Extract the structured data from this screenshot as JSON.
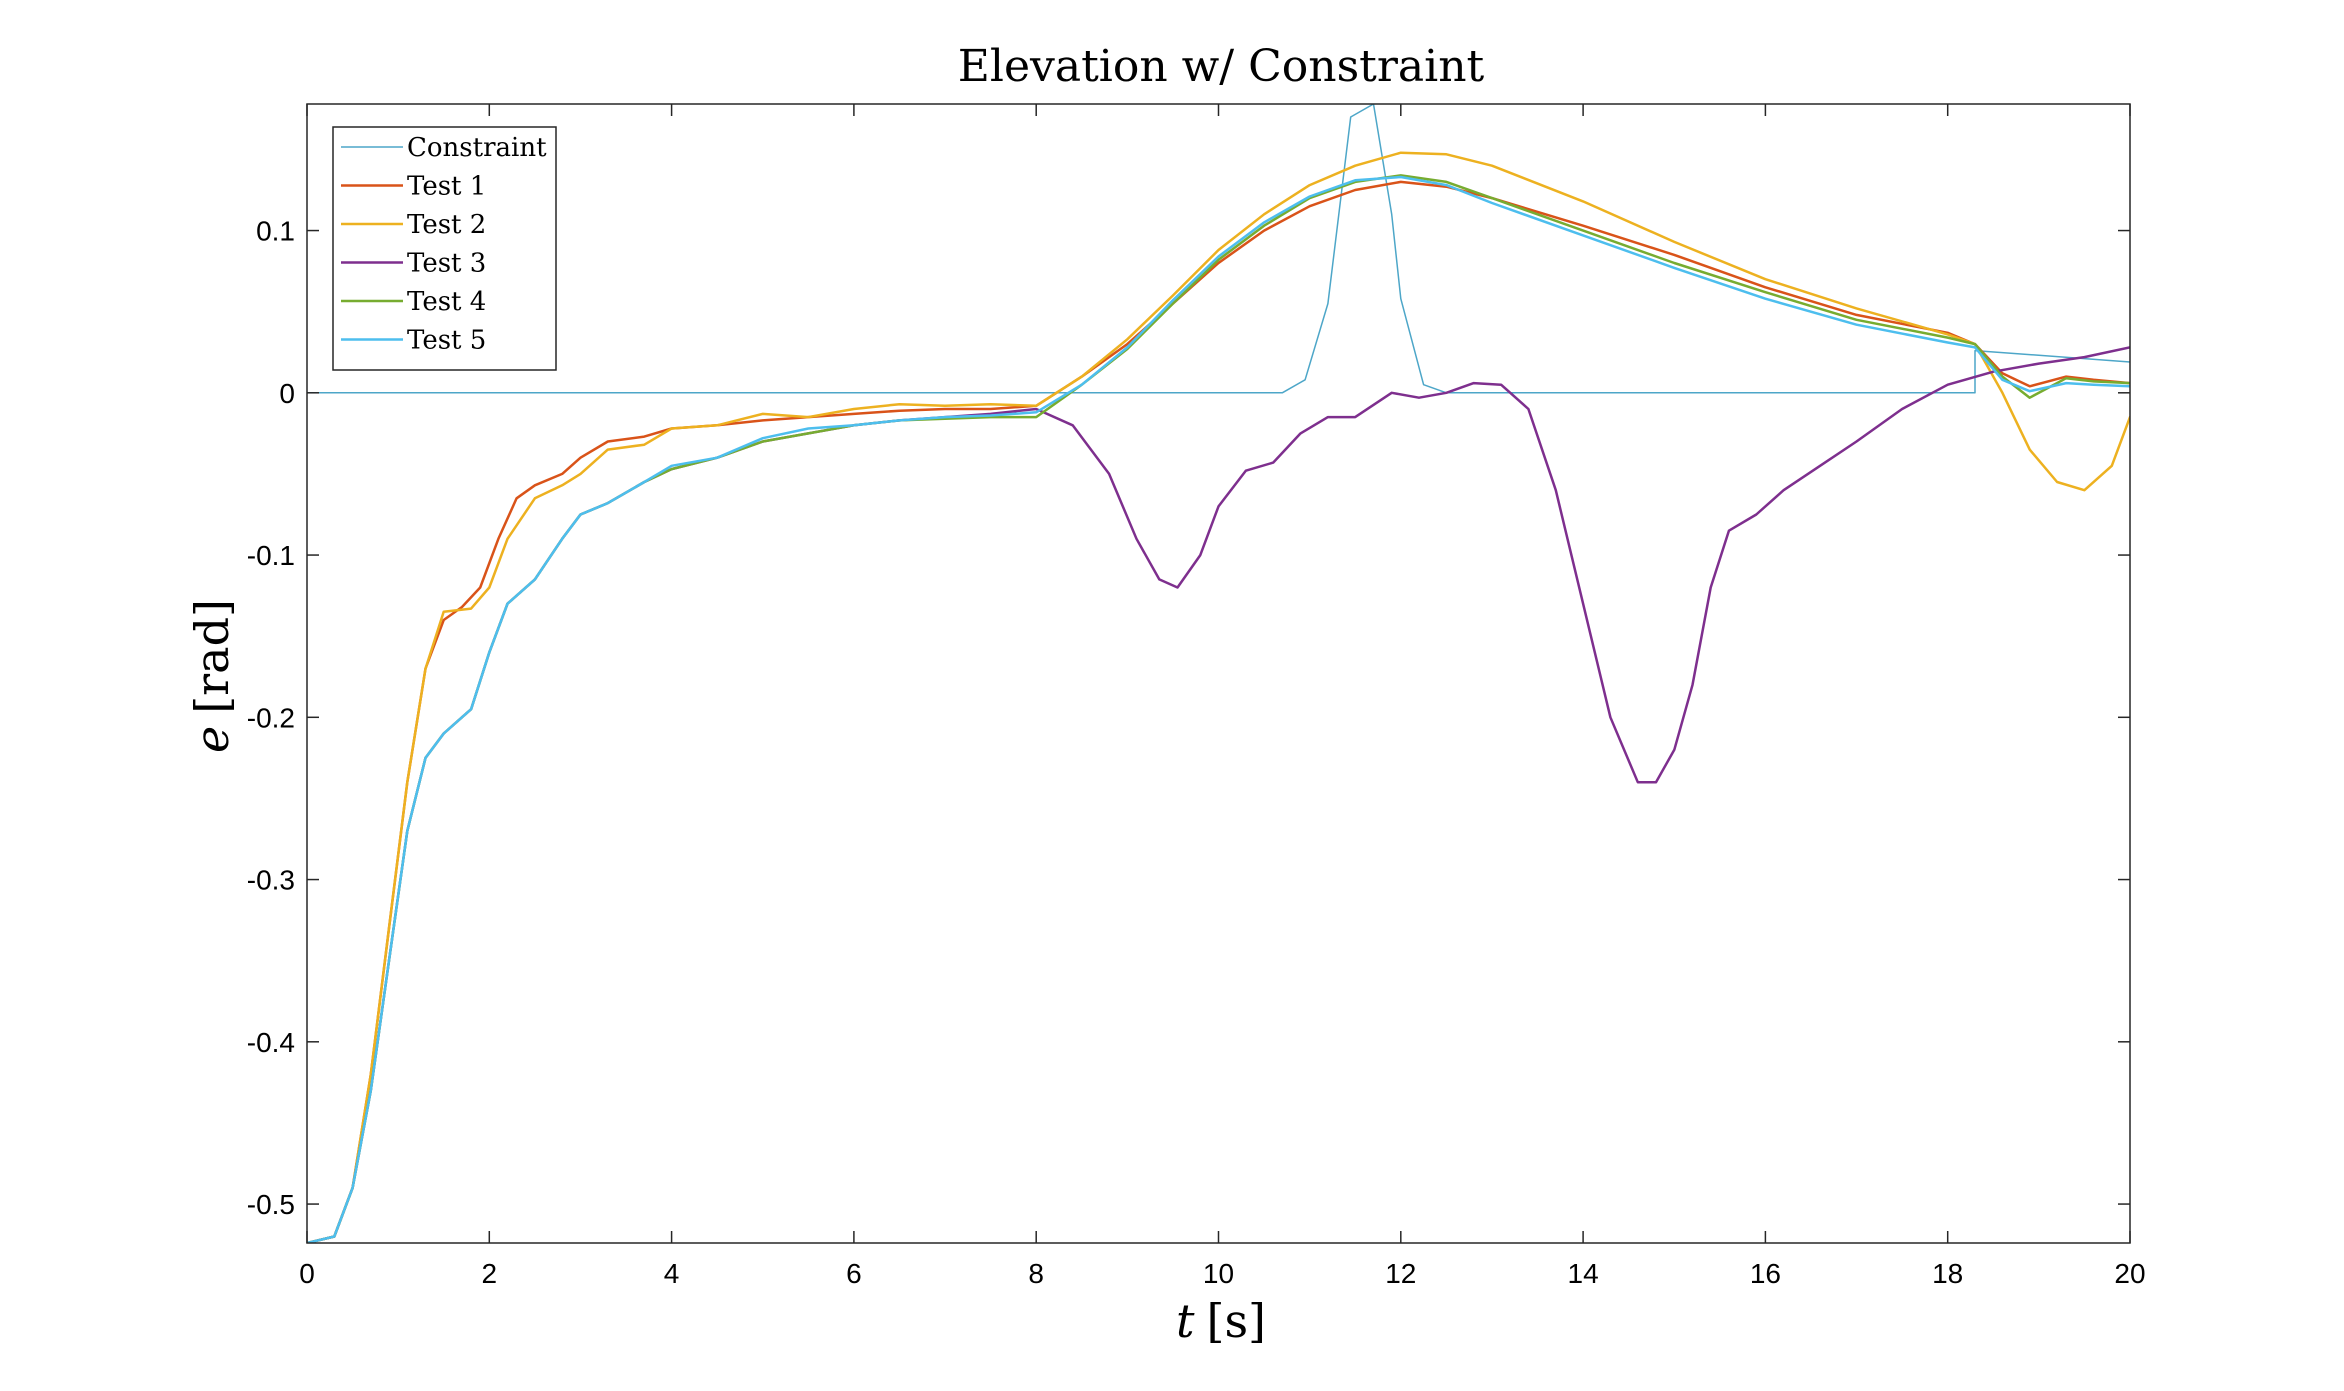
{
  "chart_data": {
    "type": "line",
    "title": "Elevation w/ Constraint",
    "xlabel_var": "t",
    "xlabel_unit": "[s]",
    "ylabel_var": "e",
    "ylabel_unit": "[rad]",
    "xlim": [
      0,
      20
    ],
    "ylim": [
      -0.524,
      0.178
    ],
    "xticks": [
      0,
      2,
      4,
      6,
      8,
      10,
      12,
      14,
      16,
      18,
      20
    ],
    "xtick_labels": [
      "0",
      "2",
      "4",
      "6",
      "8",
      "10",
      "12",
      "14",
      "16",
      "18",
      "20"
    ],
    "yticks": [
      -0.5,
      -0.4,
      -0.3,
      -0.2,
      -0.1,
      0,
      0.1
    ],
    "ytick_labels": [
      "-0.5",
      "-0.4",
      "-0.3",
      "-0.2",
      "-0.1",
      "0",
      "0.1"
    ],
    "grid": false,
    "legend_position": "top-left",
    "series": [
      {
        "name": "Constraint",
        "color": "#4DA6C8",
        "width": 1.5,
        "points": [
          [
            0,
            0
          ],
          [
            10.7,
            0
          ],
          [
            10.95,
            0.008
          ],
          [
            11.2,
            0.055
          ],
          [
            11.45,
            0.17
          ],
          [
            11.7,
            0.178
          ],
          [
            11.9,
            0.11
          ],
          [
            12.0,
            0.058
          ],
          [
            12.25,
            0.005
          ],
          [
            12.5,
            0
          ],
          [
            18.3,
            0
          ],
          [
            18.3,
            0.026
          ],
          [
            20,
            0.019
          ]
        ]
      },
      {
        "name": "Test 1",
        "color": "#D95319",
        "width": 2.5,
        "points": [
          [
            0,
            -0.524
          ],
          [
            0.3,
            -0.52
          ],
          [
            0.5,
            -0.49
          ],
          [
            0.7,
            -0.42
          ],
          [
            0.9,
            -0.33
          ],
          [
            1.1,
            -0.24
          ],
          [
            1.3,
            -0.17
          ],
          [
            1.5,
            -0.14
          ],
          [
            1.7,
            -0.132
          ],
          [
            1.9,
            -0.12
          ],
          [
            2.1,
            -0.09
          ],
          [
            2.3,
            -0.065
          ],
          [
            2.5,
            -0.057
          ],
          [
            2.8,
            -0.05
          ],
          [
            3.0,
            -0.04
          ],
          [
            3.3,
            -0.03
          ],
          [
            3.7,
            -0.027
          ],
          [
            4.0,
            -0.022
          ],
          [
            4.5,
            -0.02
          ],
          [
            5.0,
            -0.017
          ],
          [
            5.5,
            -0.015
          ],
          [
            6.0,
            -0.013
          ],
          [
            6.5,
            -0.011
          ],
          [
            7.0,
            -0.01
          ],
          [
            7.5,
            -0.01
          ],
          [
            8.0,
            -0.008
          ],
          [
            8.5,
            0.01
          ],
          [
            9.0,
            0.03
          ],
          [
            9.5,
            0.055
          ],
          [
            10,
            0.08
          ],
          [
            10.5,
            0.1
          ],
          [
            11,
            0.115
          ],
          [
            11.5,
            0.125
          ],
          [
            12,
            0.13
          ],
          [
            12.5,
            0.127
          ],
          [
            13,
            0.12
          ],
          [
            14,
            0.103
          ],
          [
            15,
            0.085
          ],
          [
            16,
            0.065
          ],
          [
            17,
            0.048
          ],
          [
            18,
            0.037
          ],
          [
            18.3,
            0.03
          ],
          [
            18.6,
            0.012
          ],
          [
            18.9,
            0.004
          ],
          [
            19.3,
            0.01
          ],
          [
            19.6,
            0.008
          ],
          [
            20,
            0.006
          ]
        ]
      },
      {
        "name": "Test 2",
        "color": "#EDB120",
        "width": 2.5,
        "points": [
          [
            0,
            -0.524
          ],
          [
            0.3,
            -0.52
          ],
          [
            0.5,
            -0.49
          ],
          [
            0.7,
            -0.42
          ],
          [
            0.9,
            -0.33
          ],
          [
            1.1,
            -0.24
          ],
          [
            1.3,
            -0.17
          ],
          [
            1.5,
            -0.135
          ],
          [
            1.8,
            -0.133
          ],
          [
            2.0,
            -0.12
          ],
          [
            2.2,
            -0.09
          ],
          [
            2.5,
            -0.065
          ],
          [
            2.8,
            -0.057
          ],
          [
            3.0,
            -0.05
          ],
          [
            3.3,
            -0.035
          ],
          [
            3.7,
            -0.032
          ],
          [
            4.0,
            -0.022
          ],
          [
            4.5,
            -0.02
          ],
          [
            5.0,
            -0.013
          ],
          [
            5.5,
            -0.015
          ],
          [
            6.0,
            -0.01
          ],
          [
            6.5,
            -0.007
          ],
          [
            7.0,
            -0.008
          ],
          [
            7.5,
            -0.007
          ],
          [
            8.0,
            -0.008
          ],
          [
            8.5,
            0.01
          ],
          [
            9.0,
            0.033
          ],
          [
            9.5,
            0.06
          ],
          [
            10,
            0.088
          ],
          [
            10.5,
            0.11
          ],
          [
            11,
            0.128
          ],
          [
            11.5,
            0.14
          ],
          [
            12,
            0.148
          ],
          [
            12.5,
            0.147
          ],
          [
            13,
            0.14
          ],
          [
            14,
            0.118
          ],
          [
            15,
            0.093
          ],
          [
            16,
            0.07
          ],
          [
            17,
            0.052
          ],
          [
            18,
            0.036
          ],
          [
            18.3,
            0.03
          ],
          [
            18.6,
            0.0
          ],
          [
            18.9,
            -0.035
          ],
          [
            19.2,
            -0.055
          ],
          [
            19.5,
            -0.06
          ],
          [
            19.8,
            -0.045
          ],
          [
            20,
            -0.015
          ]
        ]
      },
      {
        "name": "Test 3",
        "color": "#7E2F8E",
        "width": 2.5,
        "points": [
          [
            0,
            -0.524
          ],
          [
            0.3,
            -0.52
          ],
          [
            0.5,
            -0.49
          ],
          [
            0.7,
            -0.43
          ],
          [
            0.9,
            -0.35
          ],
          [
            1.1,
            -0.27
          ],
          [
            1.3,
            -0.225
          ],
          [
            1.5,
            -0.21
          ],
          [
            1.8,
            -0.195
          ],
          [
            2.0,
            -0.16
          ],
          [
            2.2,
            -0.13
          ],
          [
            2.5,
            -0.115
          ],
          [
            2.8,
            -0.09
          ],
          [
            3.0,
            -0.075
          ],
          [
            3.3,
            -0.068
          ],
          [
            3.7,
            -0.055
          ],
          [
            4.0,
            -0.047
          ],
          [
            4.5,
            -0.04
          ],
          [
            5.0,
            -0.03
          ],
          [
            5.5,
            -0.025
          ],
          [
            6.0,
            -0.02
          ],
          [
            6.5,
            -0.017
          ],
          [
            7.0,
            -0.015
          ],
          [
            7.5,
            -0.013
          ],
          [
            8.0,
            -0.01
          ],
          [
            8.4,
            -0.02
          ],
          [
            8.8,
            -0.05
          ],
          [
            9.1,
            -0.09
          ],
          [
            9.35,
            -0.115
          ],
          [
            9.55,
            -0.12
          ],
          [
            9.8,
            -0.1
          ],
          [
            10.0,
            -0.07
          ],
          [
            10.3,
            -0.048
          ],
          [
            10.6,
            -0.043
          ],
          [
            10.9,
            -0.025
          ],
          [
            11.2,
            -0.015
          ],
          [
            11.5,
            -0.015
          ],
          [
            11.9,
            0.0
          ],
          [
            12.2,
            -0.003
          ],
          [
            12.5,
            0.0
          ],
          [
            12.8,
            0.006
          ],
          [
            13.1,
            0.005
          ],
          [
            13.4,
            -0.01
          ],
          [
            13.7,
            -0.06
          ],
          [
            14.0,
            -0.13
          ],
          [
            14.3,
            -0.2
          ],
          [
            14.6,
            -0.24
          ],
          [
            14.8,
            -0.24
          ],
          [
            15.0,
            -0.22
          ],
          [
            15.2,
            -0.18
          ],
          [
            15.4,
            -0.12
          ],
          [
            15.6,
            -0.085
          ],
          [
            15.9,
            -0.075
          ],
          [
            16.2,
            -0.06
          ],
          [
            16.6,
            -0.045
          ],
          [
            17.0,
            -0.03
          ],
          [
            17.5,
            -0.01
          ],
          [
            18.0,
            0.005
          ],
          [
            18.5,
            0.013
          ],
          [
            19.0,
            0.018
          ],
          [
            19.5,
            0.022
          ],
          [
            20.0,
            0.028
          ]
        ]
      },
      {
        "name": "Test 4",
        "color": "#77AC30",
        "width": 2.5,
        "points": [
          [
            0,
            -0.524
          ],
          [
            0.3,
            -0.52
          ],
          [
            0.5,
            -0.49
          ],
          [
            0.7,
            -0.43
          ],
          [
            0.9,
            -0.35
          ],
          [
            1.1,
            -0.27
          ],
          [
            1.3,
            -0.225
          ],
          [
            1.5,
            -0.21
          ],
          [
            1.8,
            -0.195
          ],
          [
            2.0,
            -0.16
          ],
          [
            2.2,
            -0.13
          ],
          [
            2.5,
            -0.115
          ],
          [
            2.8,
            -0.09
          ],
          [
            3.0,
            -0.075
          ],
          [
            3.3,
            -0.068
          ],
          [
            3.7,
            -0.055
          ],
          [
            4.0,
            -0.047
          ],
          [
            4.5,
            -0.04
          ],
          [
            5.0,
            -0.03
          ],
          [
            5.5,
            -0.025
          ],
          [
            6.0,
            -0.02
          ],
          [
            6.5,
            -0.017
          ],
          [
            7.0,
            -0.016
          ],
          [
            7.5,
            -0.015
          ],
          [
            8.0,
            -0.015
          ],
          [
            8.5,
            0.005
          ],
          [
            9.0,
            0.027
          ],
          [
            9.5,
            0.055
          ],
          [
            10,
            0.082
          ],
          [
            10.5,
            0.103
          ],
          [
            11,
            0.12
          ],
          [
            11.5,
            0.13
          ],
          [
            12,
            0.134
          ],
          [
            12.5,
            0.13
          ],
          [
            13,
            0.12
          ],
          [
            14,
            0.1
          ],
          [
            15,
            0.08
          ],
          [
            16,
            0.062
          ],
          [
            17,
            0.045
          ],
          [
            18,
            0.034
          ],
          [
            18.3,
            0.03
          ],
          [
            18.6,
            0.01
          ],
          [
            18.9,
            -0.003
          ],
          [
            19.3,
            0.009
          ],
          [
            19.6,
            0.007
          ],
          [
            20,
            0.006
          ]
        ]
      },
      {
        "name": "Test 5",
        "color": "#4DBEEE",
        "width": 2.5,
        "points": [
          [
            0,
            -0.524
          ],
          [
            0.3,
            -0.52
          ],
          [
            0.5,
            -0.49
          ],
          [
            0.7,
            -0.43
          ],
          [
            0.9,
            -0.35
          ],
          [
            1.1,
            -0.27
          ],
          [
            1.3,
            -0.225
          ],
          [
            1.5,
            -0.21
          ],
          [
            1.8,
            -0.195
          ],
          [
            2.0,
            -0.16
          ],
          [
            2.2,
            -0.13
          ],
          [
            2.5,
            -0.115
          ],
          [
            2.8,
            -0.09
          ],
          [
            3.0,
            -0.075
          ],
          [
            3.3,
            -0.068
          ],
          [
            3.7,
            -0.055
          ],
          [
            4.0,
            -0.045
          ],
          [
            4.5,
            -0.04
          ],
          [
            5.0,
            -0.028
          ],
          [
            5.5,
            -0.022
          ],
          [
            6.0,
            -0.02
          ],
          [
            6.5,
            -0.017
          ],
          [
            7.0,
            -0.015
          ],
          [
            7.5,
            -0.014
          ],
          [
            8.0,
            -0.012
          ],
          [
            8.5,
            0.005
          ],
          [
            9.0,
            0.028
          ],
          [
            9.5,
            0.057
          ],
          [
            10,
            0.084
          ],
          [
            10.5,
            0.105
          ],
          [
            11,
            0.121
          ],
          [
            11.5,
            0.131
          ],
          [
            12,
            0.133
          ],
          [
            12.5,
            0.128
          ],
          [
            13,
            0.117
          ],
          [
            14,
            0.097
          ],
          [
            15,
            0.077
          ],
          [
            16,
            0.058
          ],
          [
            17,
            0.042
          ],
          [
            18,
            0.031
          ],
          [
            18.3,
            0.028
          ],
          [
            18.6,
            0.008
          ],
          [
            18.9,
            0.001
          ],
          [
            19.3,
            0.006
          ],
          [
            19.6,
            0.005
          ],
          [
            20,
            0.004
          ]
        ]
      }
    ]
  }
}
